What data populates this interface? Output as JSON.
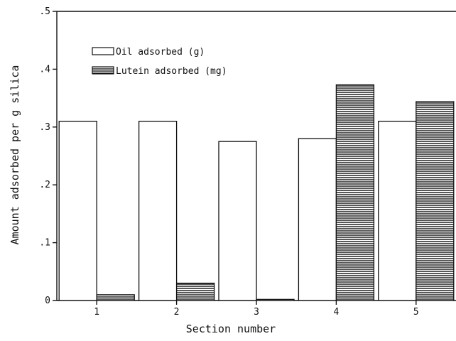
{
  "chart_data": {
    "type": "bar",
    "categories": [
      "1",
      "2",
      "3",
      "4",
      "5"
    ],
    "series": [
      {
        "name": "Oil adsorbed (g)",
        "values": [
          0.31,
          0.31,
          0.275,
          0.28,
          0.31
        ],
        "pattern": "open"
      },
      {
        "name": "Lutein adsorbed (mg)",
        "values": [
          0.01,
          0.03,
          0.002,
          0.373,
          0.344
        ],
        "pattern": "horizontal-hatch"
      }
    ],
    "xlabel": "Section number",
    "ylabel": "Amount adsorbed per g silica",
    "ylim": [
      0,
      0.5
    ],
    "yticks": [
      0,
      0.1,
      0.2,
      0.3,
      0.4,
      0.5
    ],
    "ytick_labels": [
      "0",
      ".1",
      ".2",
      ".3",
      ".4",
      ".5"
    ],
    "legend_position": "top-left",
    "grid": false,
    "colors": {
      "stroke": "#111111",
      "fill": "#ffffff",
      "hatch": "#111111"
    }
  }
}
